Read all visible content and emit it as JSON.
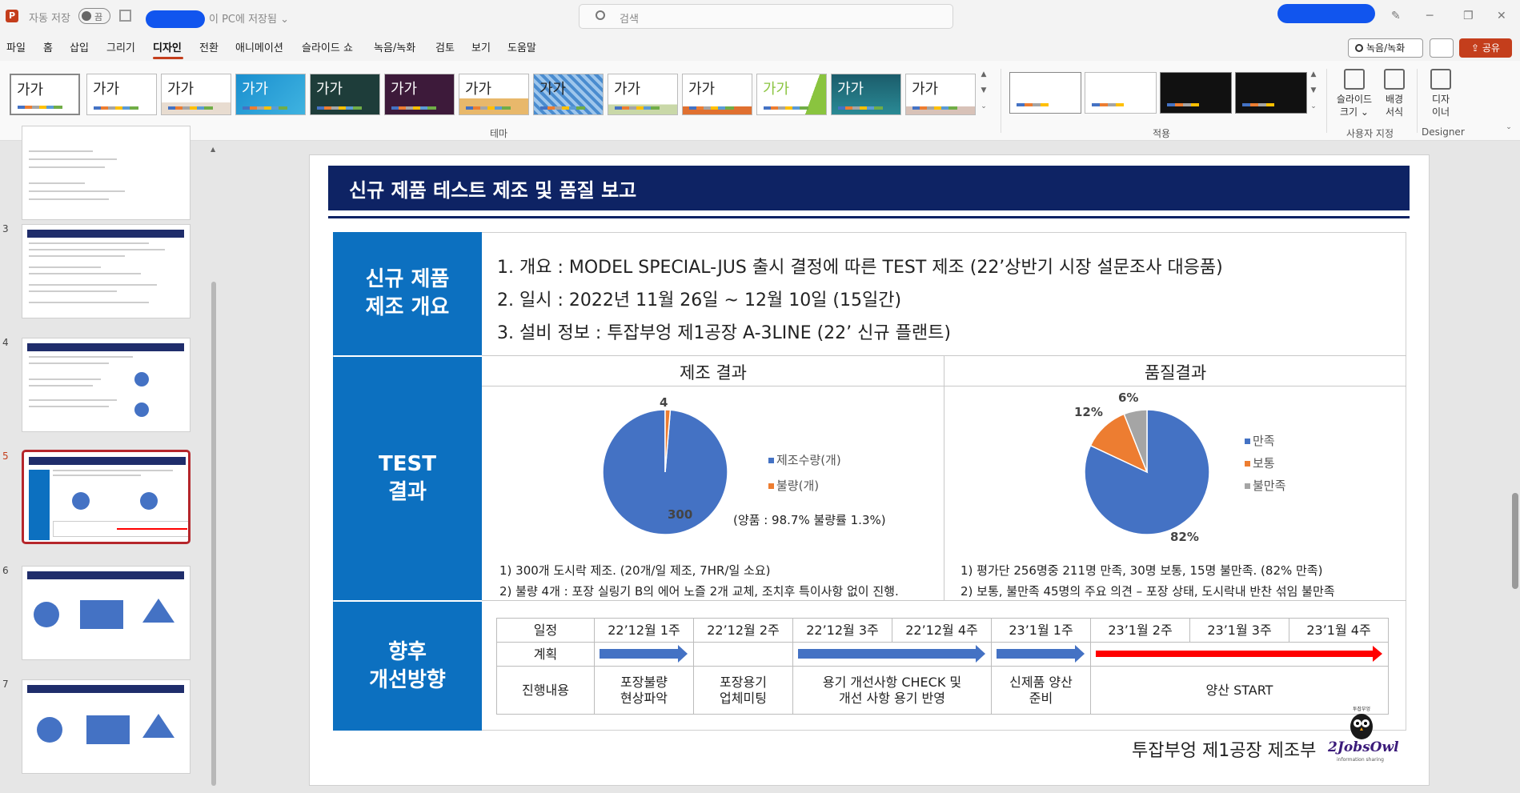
{
  "titlebar": {
    "app_icon": "P",
    "autosave_label": "자동 저장",
    "autosave_state": "끔",
    "saved_location": "이 PC에 저장됨 ⌄",
    "search_placeholder": "검색"
  },
  "menu": [
    "파일",
    "홈",
    "삽입",
    "그리기",
    "디자인",
    "전환",
    "애니메이션",
    "슬라이드 쇼",
    "녹음/녹화",
    "검토",
    "보기",
    "도움말"
  ],
  "menu_active": "디자인",
  "actions": {
    "record": "녹음/녹화",
    "share": "공유"
  },
  "ribbon": {
    "theme_sample": "가가",
    "themes_group": "테마",
    "variants_group": "적용",
    "slide_size": "슬라이드\n크기 ⌄",
    "background": "배경\n서식",
    "customize_group": "사용자 지정",
    "designer": "디자\n이너",
    "designer_group": "Designer"
  },
  "slides": {
    "numbers": [
      "3",
      "4",
      "5",
      "6",
      "7"
    ],
    "current": "5"
  },
  "slide": {
    "title": "신규 제품 테스트 제조 및 품질 보고",
    "sections": {
      "overview": "신규 제품\n제조 개요",
      "test": "TEST\n결과",
      "future": "향후\n개선방향"
    },
    "overview_lines": [
      "1. 개요 : MODEL SPECIAL-JUS 출시 결정에 따른 TEST 제조 (22’상반기 시장 설문조사 대응품)",
      "2. 일시 : 2022년 11월 26일 ~ 12월 10일 (15일간)",
      "3. 설비 정보 : 투잡부엉 제1공장 A-3LINE (22’ 신규 플랜트)"
    ],
    "manufacturing": {
      "header": "제조 결과",
      "legend": [
        "제조수량(개)",
        "불량(개)"
      ],
      "label_good": "300",
      "label_defect": "4",
      "yield_text": "(양품 : 98.7% 불량률 1.3%)",
      "notes": [
        "1) 300개 도시락 제조. (20개/일 제조, 7HR/일 소요)",
        "2) 불량 4개 : 포장 실링기 B의 에어 노즐 2개 교체, 조치후 특이사항 없이 진행."
      ]
    },
    "quality": {
      "header": "품질결과",
      "legend": [
        "만족",
        "보통",
        "불만족"
      ],
      "labels": [
        "82%",
        "12%",
        "6%"
      ],
      "notes": [
        "1) 평가단 256명중 211명 만족, 30명 보통, 15명 불만족. (82% 만족)",
        "2) 보통, 불만족 45명의 주요 의견 – 포장 상태, 도시락내 반찬 섞임 불만족"
      ]
    },
    "schedule": {
      "row_labels": [
        "일정",
        "계획",
        "진행내용"
      ],
      "weeks": [
        "22’12월 1주",
        "22’12월 2주",
        "22’12월 3주",
        "22’12월 4주",
        "23’1월 1주",
        "23’1월 2주",
        "23’1월 3주",
        "23’1월 4주"
      ],
      "tasks": [
        "포장불량\n현상파악",
        "포장용기\n업체미팅",
        "용기 개선사항 CHECK 및\n개선 사항 용기 반영",
        "신제품 양산\n준비",
        "양산 START"
      ]
    },
    "footer_dept": "투잡부엉 제1공장 제조부",
    "logo_text": "2JobsOwl",
    "logo_tag": "information sharing",
    "logo_badge": "투잡부엉"
  },
  "chart_data": [
    {
      "type": "pie",
      "title": "제조 결과",
      "categories": [
        "제조수량(개)",
        "불량(개)"
      ],
      "values": [
        300,
        4
      ],
      "colors": [
        "#4472c4",
        "#ed7d31"
      ]
    },
    {
      "type": "pie",
      "title": "품질결과",
      "categories": [
        "만족",
        "보통",
        "불만족"
      ],
      "values": [
        82,
        12,
        6
      ],
      "colors": [
        "#4472c4",
        "#ed7d31",
        "#a5a5a5"
      ]
    }
  ]
}
